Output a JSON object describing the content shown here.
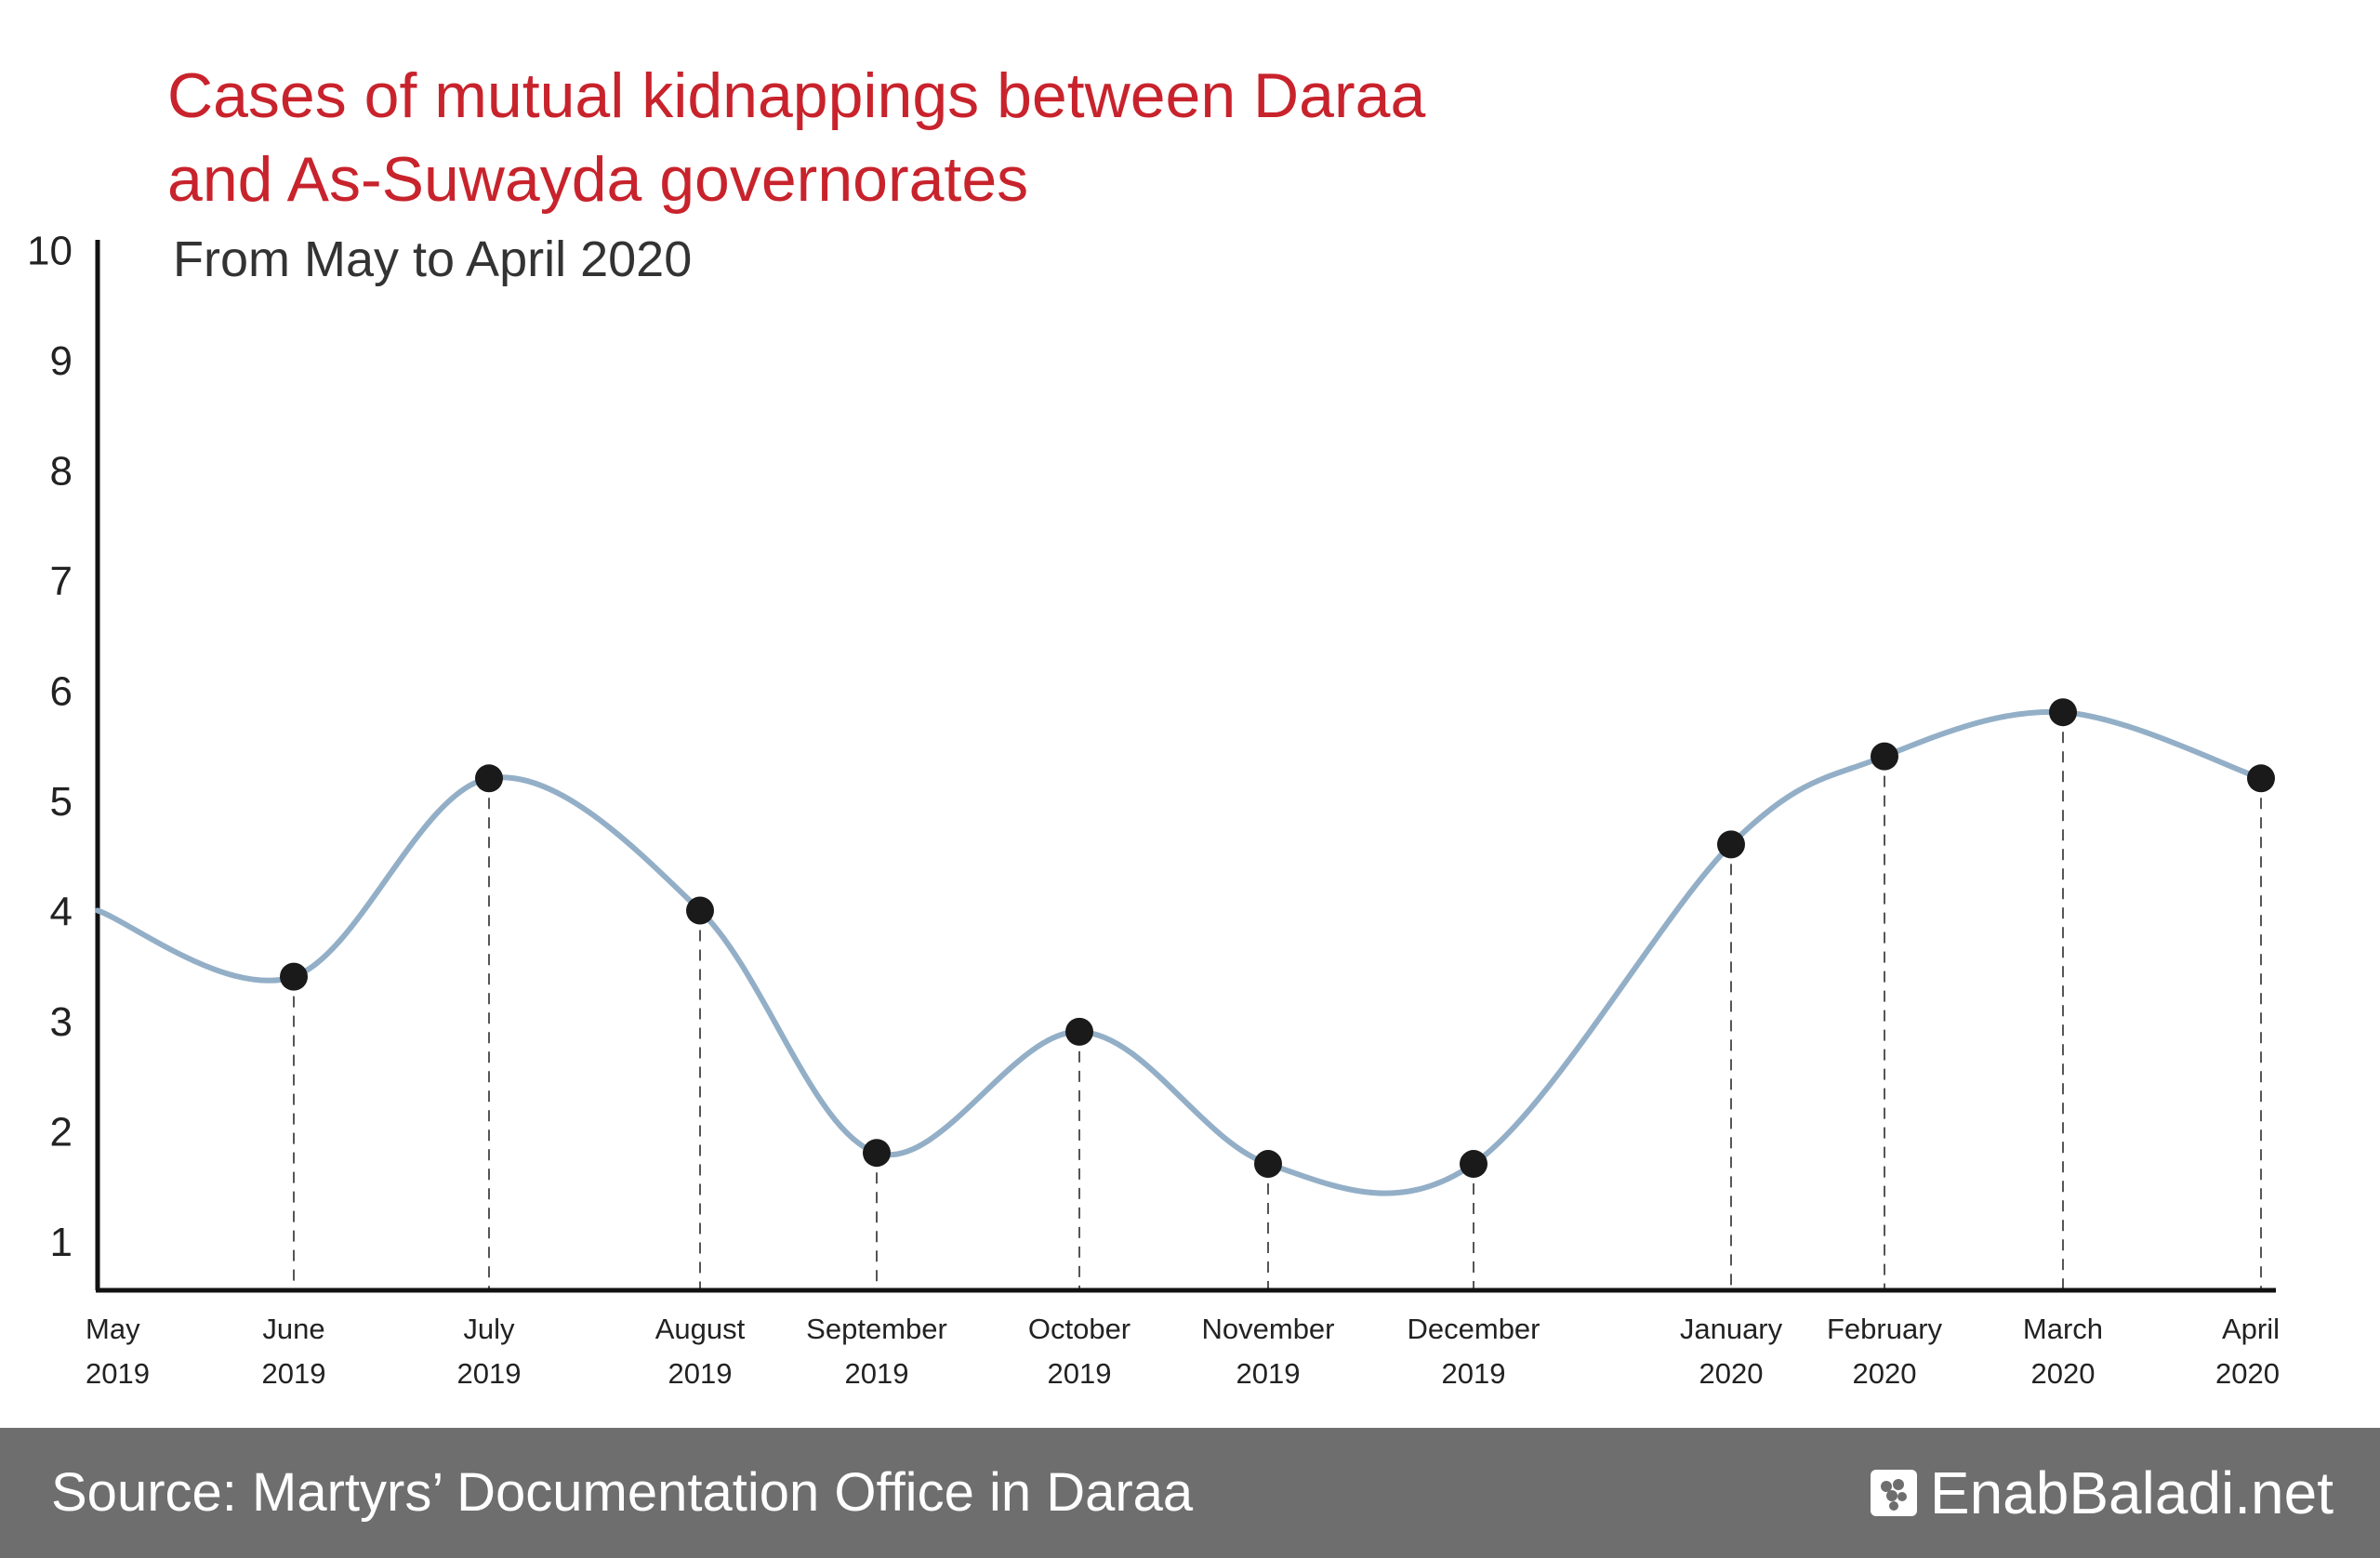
{
  "title_lines": [
    "Cases of mutual kidnappings between Daraa",
    "and As-Suwayda governorates"
  ],
  "subtitle": "From May to April 2020",
  "footer": {
    "source": "Source: Martyrs’ Documentation Office in Daraa",
    "brand": "EnabBaladi.net"
  },
  "colors": {
    "title": "#c8232c",
    "line": "#93afc7",
    "marker": "#1a1a1a",
    "axis": "#111111",
    "footer_bg": "#6e6e6e"
  },
  "chart_data": {
    "type": "line",
    "title": "Cases of mutual kidnappings between Daraa and As-Suwayda governorates",
    "subtitle": "From May to April 2020",
    "categories": [
      {
        "month": "May",
        "year": "2019"
      },
      {
        "month": "June",
        "year": "2019"
      },
      {
        "month": "July",
        "year": "2019"
      },
      {
        "month": "August",
        "year": "2019"
      },
      {
        "month": "September",
        "year": "2019"
      },
      {
        "month": "October",
        "year": "2019"
      },
      {
        "month": "November",
        "year": "2019"
      },
      {
        "month": "December",
        "year": "2019"
      },
      {
        "month": "January",
        "year": "2020"
      },
      {
        "month": "February",
        "year": "2020"
      },
      {
        "month": "March",
        "year": "2020"
      },
      {
        "month": "April",
        "year": "2020"
      }
    ],
    "values": [
      4,
      3.4,
      5.2,
      4,
      1.8,
      2.9,
      1.7,
      1.7,
      4.6,
      5.4,
      5.8,
      5.2
    ],
    "markers": [
      false,
      true,
      true,
      true,
      true,
      true,
      true,
      true,
      true,
      true,
      true,
      true
    ],
    "y_ticks": [
      1,
      2,
      3,
      4,
      5,
      6,
      7,
      8,
      9,
      10
    ],
    "ylim": [
      0.6,
      10.1
    ],
    "grid": false,
    "drop_lines": true
  }
}
